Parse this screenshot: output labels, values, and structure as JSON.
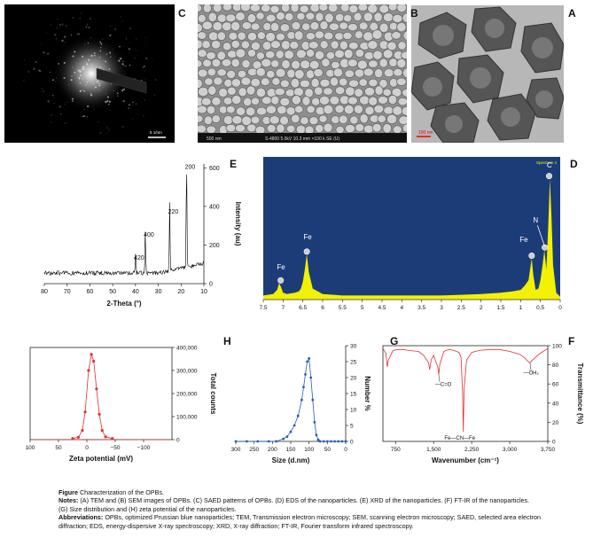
{
  "panels": {
    "A": {
      "label": "A",
      "scale_text": "100 nm"
    },
    "B": {
      "label": "B",
      "info_text": "S-4800 5.0kV 10.3 mm ×100 k SE (U)",
      "scale_text": "500 nm"
    },
    "C": {
      "label": "C",
      "scale_text": "5 1/nm"
    },
    "D": {
      "label": "D",
      "spectrum_text": "Spectrum 4"
    },
    "E": {
      "label": "E"
    },
    "F": {
      "label": "F"
    },
    "G": {
      "label": "G"
    },
    "H": {
      "label": "H"
    }
  },
  "caption": {
    "line1_bold": "Figure",
    "line1": "Characterization of the OPBs.",
    "line2_bold": "Notes:",
    "line2": "(A) TEM and (B) SEM images of OPBs. (C) SAED patterns of OPBs. (D) EDS of the nanoparticles. (E) XRD of the nanoparticles. (F) FT-IR of the nanoparticles.",
    "line3": "(G) Size distribution and (H) zeta potential of the nanoparticles.",
    "line4_bold": "Abbreviations:",
    "line4": "OPBs, optimized Prussian blue nanoparticles; TEM, Transmission electron microscopy; SEM, scanning electron microscopy; SAED, selected area electron",
    "line5": "diffraction; EDS, energy-dispersive X-ray spectroscopy; XRD, X-ray diffraction; FT-IR, Fourier transform infrared spectroscopy."
  },
  "chart_data": [
    {
      "id": "D",
      "type": "area",
      "xlabel": "",
      "ylabel": "",
      "xticks": [
        "0",
        "0.5",
        "1",
        "1.5",
        "2",
        "2.5",
        "3",
        "3.5",
        "4",
        "4.5",
        "5",
        "5.5",
        "6",
        "6.5",
        "7",
        "7.5"
      ],
      "xlim": [
        0,
        7.5
      ],
      "colors": {
        "background": "#1c3c78",
        "spectrum": "#f2f200",
        "marker": "#cccccc"
      },
      "x": [
        0.0,
        0.1,
        0.18,
        0.22,
        0.26,
        0.3,
        0.35,
        0.4,
        0.45,
        0.5,
        0.55,
        0.62,
        0.68,
        0.72,
        0.8,
        0.9,
        1.0,
        1.2,
        1.5,
        2.0,
        2.5,
        3.0,
        3.5,
        4.0,
        4.5,
        5.0,
        5.5,
        6.0,
        6.25,
        6.35,
        6.4,
        6.45,
        6.5,
        6.55,
        6.6,
        6.7,
        6.9,
        7.0,
        7.05,
        7.1,
        7.15,
        7.25,
        7.5
      ],
      "y": [
        0.02,
        0.05,
        0.25,
        0.6,
        0.88,
        0.55,
        0.22,
        0.36,
        0.24,
        0.14,
        0.08,
        0.07,
        0.18,
        0.3,
        0.14,
        0.1,
        0.07,
        0.06,
        0.05,
        0.04,
        0.035,
        0.03,
        0.03,
        0.03,
        0.03,
        0.03,
        0.03,
        0.04,
        0.08,
        0.2,
        0.33,
        0.22,
        0.13,
        0.08,
        0.06,
        0.05,
        0.04,
        0.05,
        0.09,
        0.12,
        0.07,
        0.04,
        0.03
      ],
      "peaks": [
        {
          "name": "C",
          "x": 0.28,
          "y": 0.88
        },
        {
          "name": "N",
          "x": 0.39,
          "y": 0.36
        },
        {
          "name": "Fe",
          "x": 0.72,
          "y": 0.3
        },
        {
          "name": "Fe",
          "x": 6.4,
          "y": 0.33
        },
        {
          "name": "Fe",
          "x": 7.06,
          "y": 0.12
        }
      ],
      "peak_labels": [
        {
          "text": "C",
          "x": 0.27,
          "y": 0.96
        },
        {
          "text": "N",
          "x": 0.62,
          "y": 0.56
        },
        {
          "text": "Fe",
          "x": 0.92,
          "y": 0.42
        },
        {
          "text": "Fe",
          "x": 6.38,
          "y": 0.44
        },
        {
          "text": "Fe",
          "x": 7.05,
          "y": 0.22
        }
      ]
    },
    {
      "id": "E",
      "type": "line",
      "xlabel": "2-Theta (°)",
      "ylabel": "Intensity (au)",
      "xlim": [
        10,
        80
      ],
      "ylim": [
        0,
        620
      ],
      "xticks": [
        10,
        20,
        30,
        40,
        50,
        60,
        70,
        80
      ],
      "yticks": [
        0,
        200,
        400,
        600
      ],
      "peaks": [
        {
          "name": "200",
          "x": 17.6,
          "y": 580
        },
        {
          "name": "220",
          "x": 25.0,
          "y": 350
        },
        {
          "name": "400",
          "x": 35.7,
          "y": 230
        },
        {
          "name": "420",
          "x": 40.0,
          "y": 110
        }
      ]
    },
    {
      "id": "F",
      "type": "line",
      "xlabel": "Wavenumber (cm⁻¹)",
      "ylabel": "Transmittance (%)",
      "xlim": [
        3750,
        500
      ],
      "ylim": [
        0,
        100
      ],
      "xticks": [
        "3,750",
        "3,000",
        "2,250",
        "1,500",
        "750"
      ],
      "xtick_values": [
        3750,
        3000,
        2250,
        1500,
        750
      ],
      "yticks": [
        0,
        20,
        40,
        60,
        80,
        100
      ],
      "x": [
        3750,
        3600,
        3450,
        3400,
        3350,
        3300,
        3200,
        3000,
        2800,
        2600,
        2400,
        2250,
        2150,
        2100,
        2085,
        2070,
        2040,
        2000,
        1900,
        1800,
        1700,
        1620,
        1600,
        1580,
        1500,
        1450,
        1420,
        1400,
        1300,
        1200,
        1000,
        900,
        800,
        700,
        600,
        590,
        580,
        560,
        500
      ],
      "y": [
        97,
        92,
        85,
        82,
        84,
        87,
        91,
        94,
        96,
        96,
        95,
        93,
        85,
        55,
        10,
        50,
        88,
        93,
        95,
        96,
        94,
        80,
        70,
        78,
        90,
        85,
        75,
        82,
        90,
        94,
        95,
        96,
        96,
        95,
        84,
        78,
        80,
        92,
        97
      ],
      "annotations": [
        "—OH₂",
        "—C=O",
        "Fe—CN—Fe"
      ]
    },
    {
      "id": "G",
      "type": "line",
      "xlabel": "Size (d.nm)",
      "ylabel": "Number %",
      "xlim": [
        300,
        0
      ],
      "ylim": [
        0,
        30
      ],
      "xticks": [
        300,
        250,
        200,
        150,
        100,
        50,
        0
      ],
      "yticks": [
        0,
        5,
        10,
        15,
        20,
        25,
        30
      ],
      "x": [
        300,
        270,
        240,
        210,
        190,
        170,
        160,
        150,
        140,
        130,
        120,
        115,
        110,
        105,
        100,
        95,
        90,
        85,
        80,
        75,
        70,
        60,
        50,
        40,
        30,
        20,
        10,
        0
      ],
      "y": [
        0,
        0,
        0,
        0,
        0,
        0.8,
        1.5,
        3,
        5,
        8,
        13,
        17,
        21,
        25,
        26,
        20,
        13,
        6,
        2,
        0.5,
        0,
        0,
        0,
        0,
        0,
        0,
        0,
        0
      ]
    },
    {
      "id": "H",
      "type": "line",
      "xlabel": "Zeta potential (mV)",
      "ylabel": "Total counts",
      "xlim": [
        100,
        -150
      ],
      "ylim": [
        0,
        400000
      ],
      "xticks": [
        "100",
        "50",
        "0",
        "−50",
        "−100"
      ],
      "xtick_values": [
        100,
        50,
        0,
        -50,
        -100
      ],
      "yticks": [
        "0",
        "100,000",
        "200,000",
        "300,000",
        "400,000"
      ],
      "ytick_values": [
        0,
        100000,
        200000,
        300000,
        400000
      ],
      "x": [
        25,
        15,
        8,
        3,
        -3,
        -8,
        -12,
        -17,
        -22,
        -27,
        -33,
        -45
      ],
      "y": [
        5000,
        10000,
        40000,
        120000,
        300000,
        370000,
        340000,
        220000,
        110000,
        40000,
        12000,
        5000
      ]
    }
  ]
}
